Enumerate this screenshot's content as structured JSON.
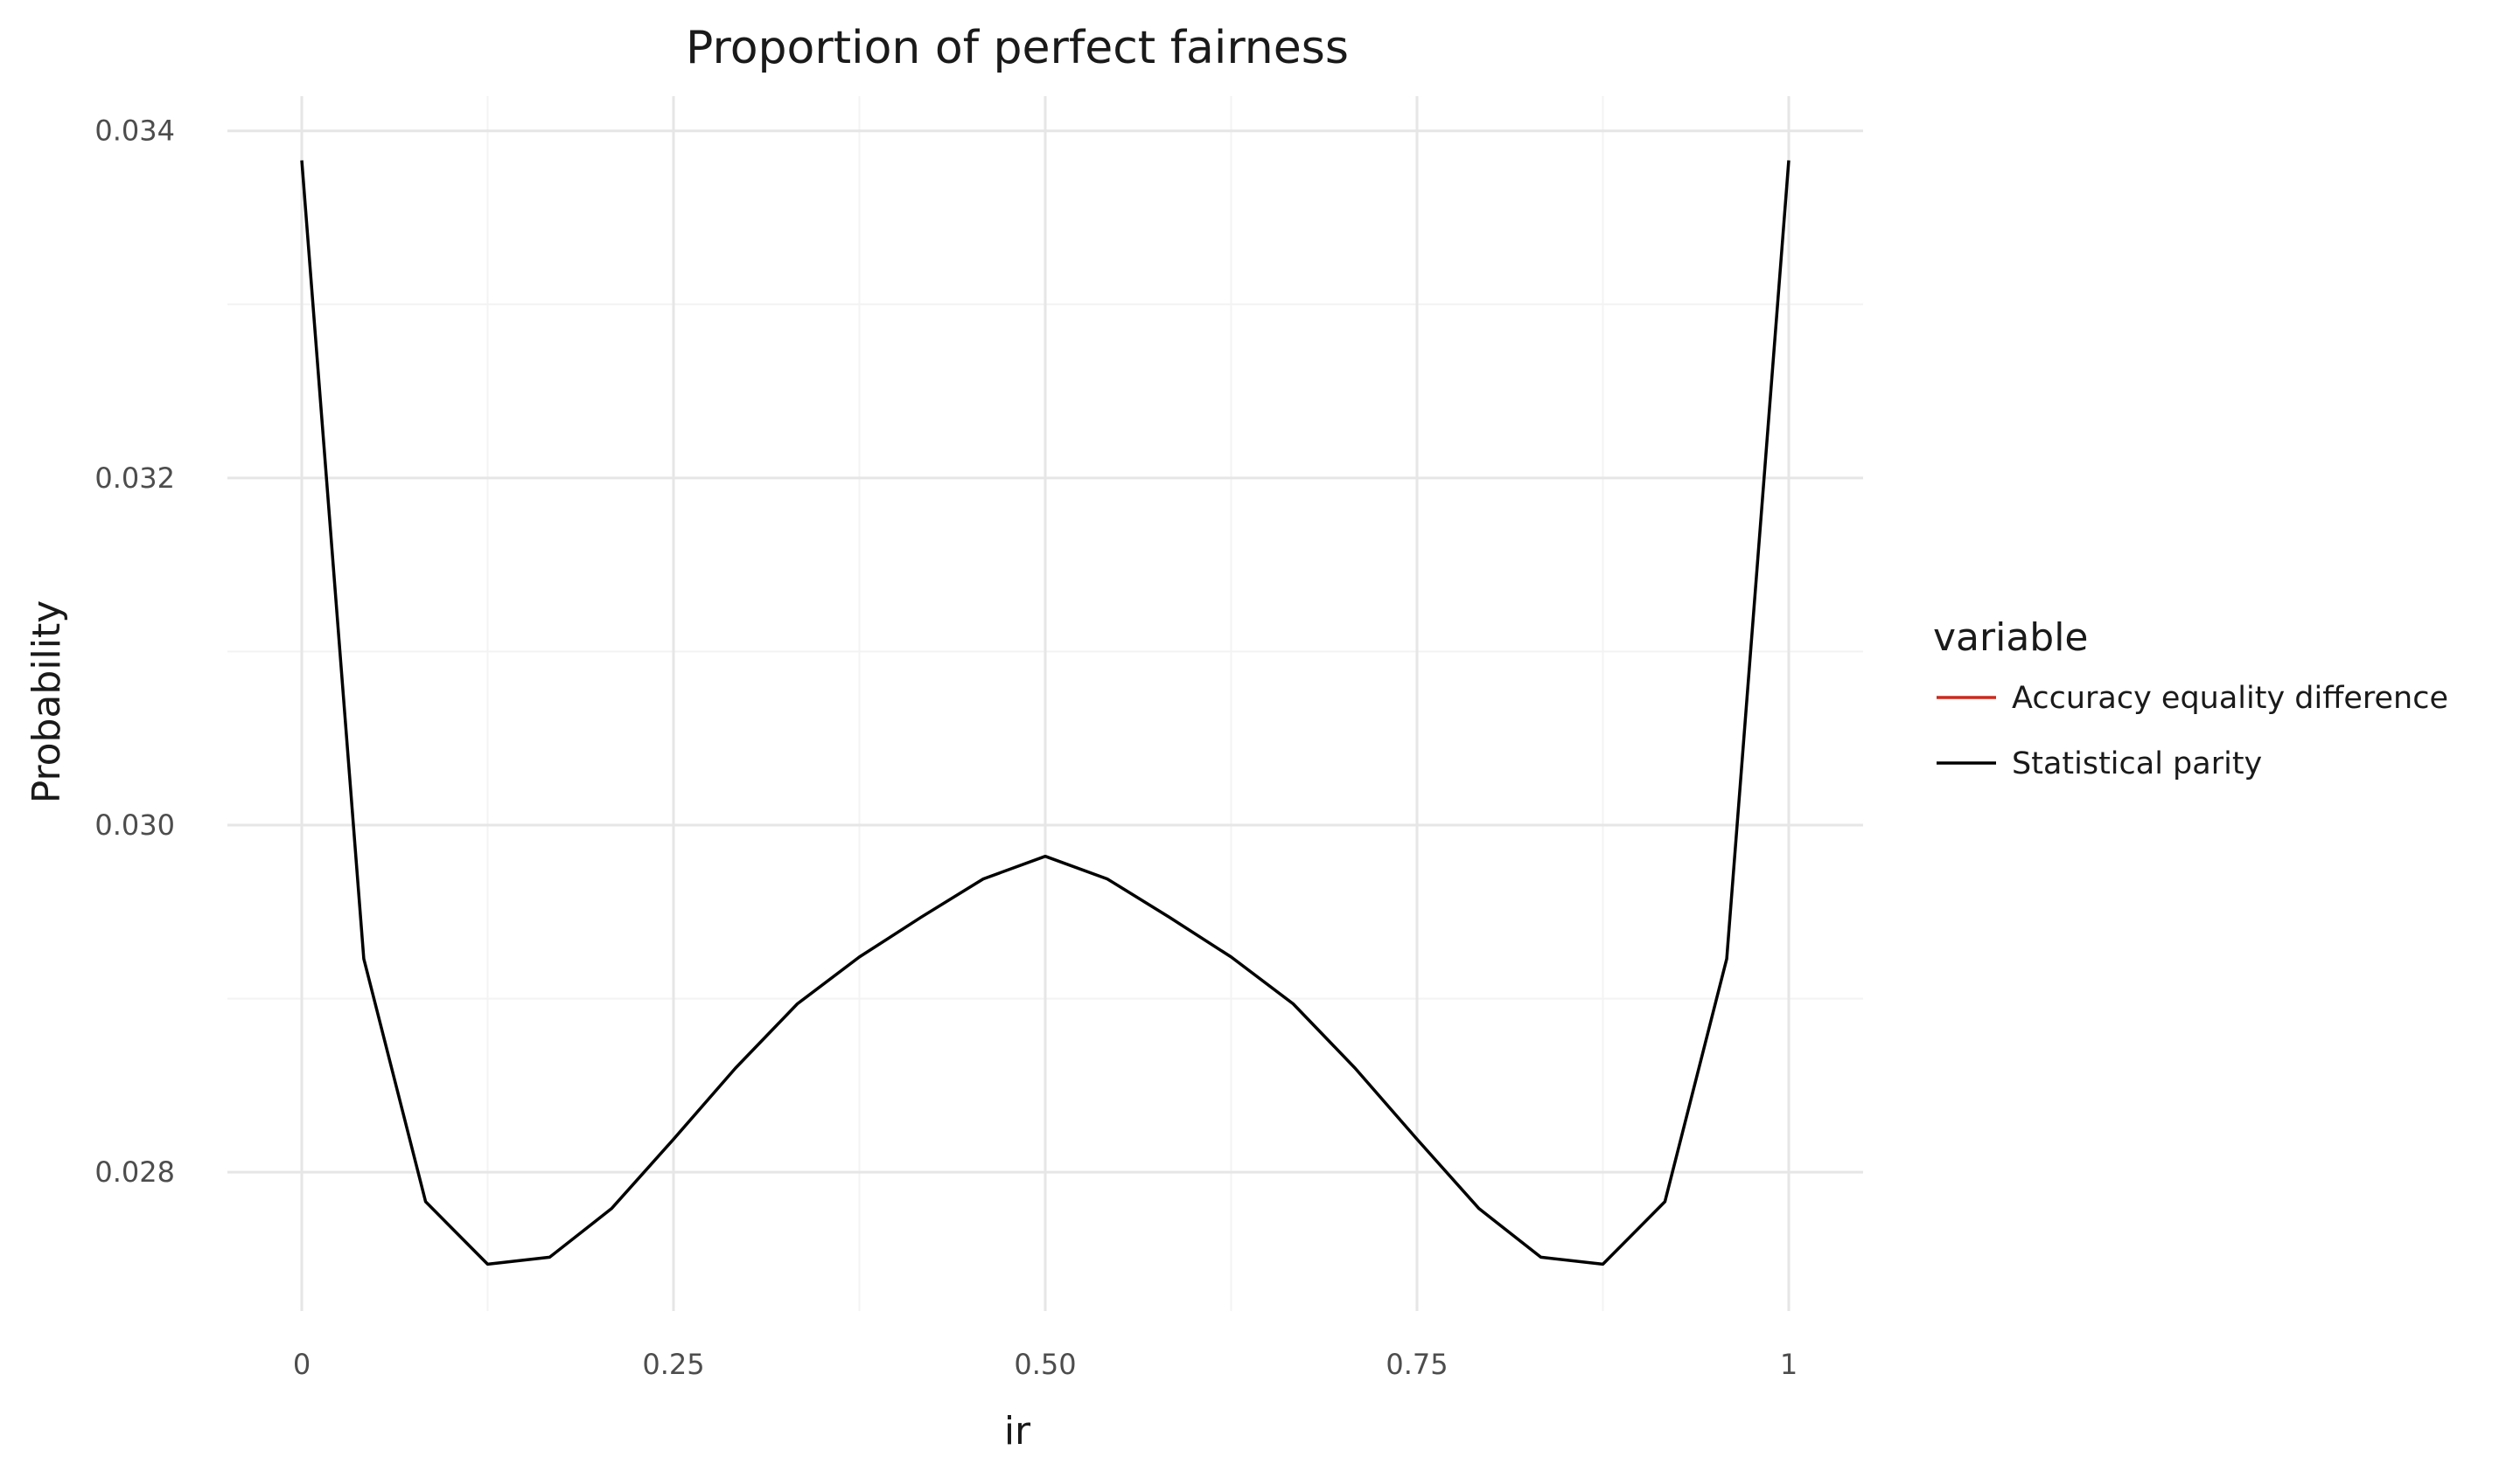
{
  "chart_data": {
    "type": "line",
    "title": "Proportion of perfect fairness",
    "xlabel": "ir",
    "ylabel": "Probability",
    "xlim": [
      -0.05,
      1.05
    ],
    "ylim": [
      0.0272,
      0.0342
    ],
    "x_ticks": [
      {
        "value": 0,
        "label": "0"
      },
      {
        "value": 0.25,
        "label": "0.25"
      },
      {
        "value": 0.5,
        "label": "0.50"
      },
      {
        "value": 0.75,
        "label": "0.75"
      },
      {
        "value": 1,
        "label": "1"
      }
    ],
    "y_ticks": [
      {
        "value": 0.028,
        "label": "0.028"
      },
      {
        "value": 0.03,
        "label": "0.030"
      },
      {
        "value": 0.032,
        "label": "0.032"
      },
      {
        "value": 0.034,
        "label": "0.034"
      }
    ],
    "grid": true,
    "legend": {
      "title": "variable",
      "position": "right",
      "entries": [
        {
          "name": "Accuracy equality difference",
          "color": "#cc2a1f"
        },
        {
          "name": "Statistical parity",
          "color": "#000000"
        }
      ]
    },
    "series": [
      {
        "name": "Statistical parity",
        "color": "#000000",
        "x": [
          0,
          0.0417,
          0.0833,
          0.125,
          0.1667,
          0.2083,
          0.25,
          0.2917,
          0.3333,
          0.375,
          0.4167,
          0.4583,
          0.5,
          0.5417,
          0.5833,
          0.625,
          0.6667,
          0.7083,
          0.75,
          0.7917,
          0.8333,
          0.875,
          0.9167,
          0.9583,
          1
        ],
        "y": [
          0.03383,
          0.02923,
          0.02783,
          0.02747,
          0.02751,
          0.02779,
          0.02819,
          0.0286,
          0.02897,
          0.02924,
          0.02947,
          0.02969,
          0.02982,
          0.02969,
          0.02947,
          0.02924,
          0.02897,
          0.0286,
          0.02819,
          0.02779,
          0.02751,
          0.02747,
          0.02783,
          0.02923,
          0.03383
        ]
      }
    ]
  }
}
